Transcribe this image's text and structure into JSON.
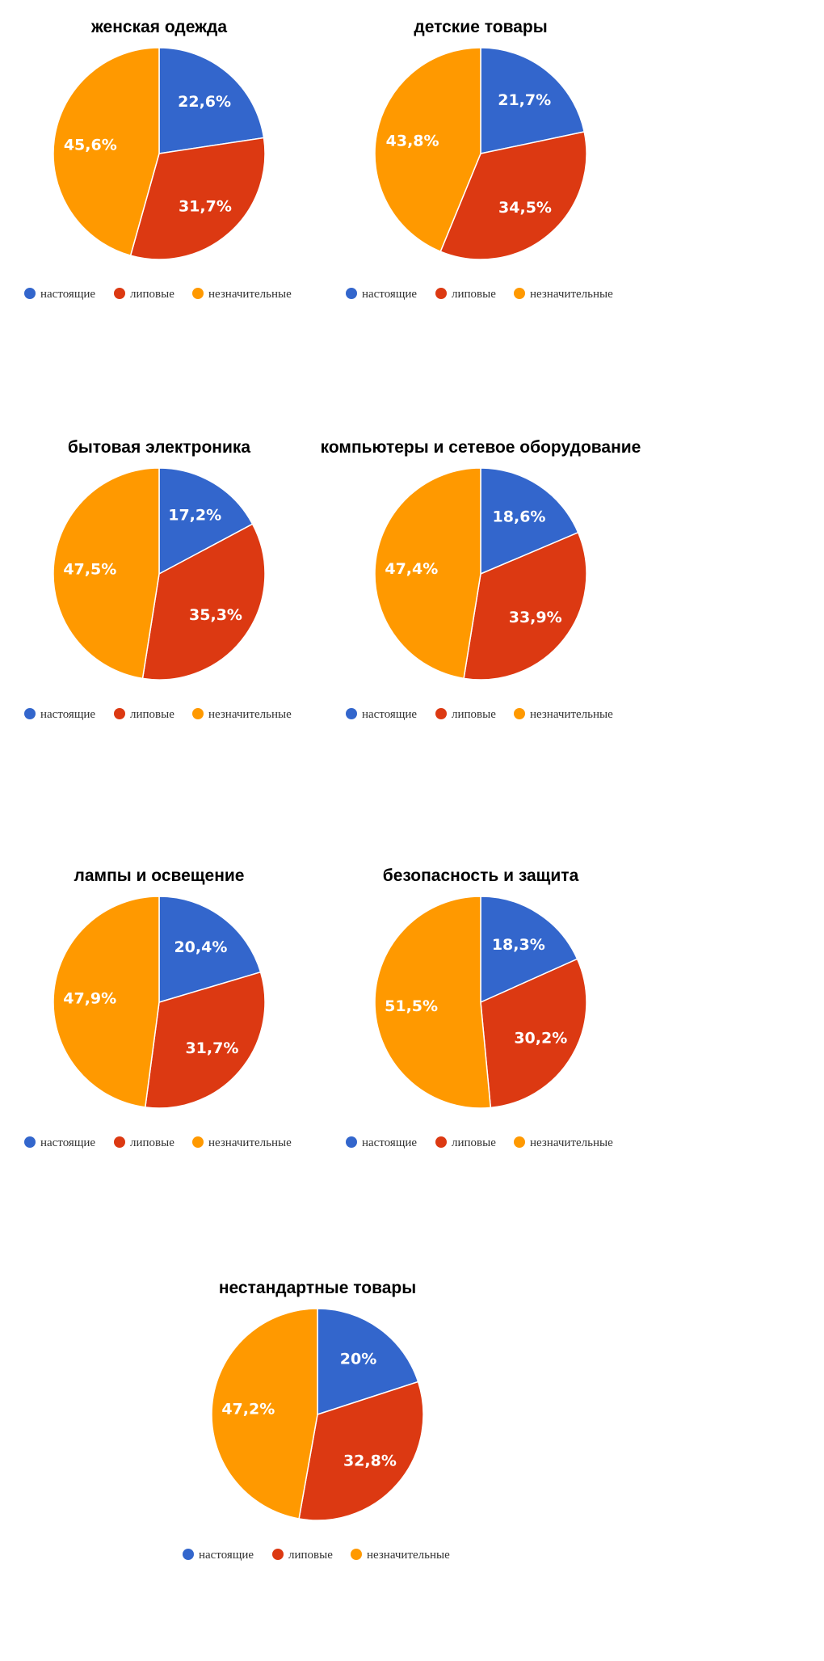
{
  "legend_labels": [
    "настоящие",
    "липовые",
    "незначительные"
  ],
  "series_colors": [
    "#3366cc",
    "#dc3912",
    "#ff9900"
  ],
  "chart_data": [
    {
      "type": "pie",
      "title": "женская одежда",
      "categories": [
        "настоящие",
        "липовые",
        "незначительные"
      ],
      "values": [
        22.6,
        31.7,
        45.6
      ],
      "value_labels": [
        "22,6%",
        "31,7%",
        "45,6%"
      ],
      "legend_position": "bottom"
    },
    {
      "type": "pie",
      "title": "детские товары",
      "categories": [
        "настоящие",
        "липовые",
        "незначительные"
      ],
      "values": [
        21.7,
        34.5,
        43.8
      ],
      "value_labels": [
        "21,7%",
        "34,5%",
        "43,8%"
      ],
      "legend_position": "bottom"
    },
    {
      "type": "pie",
      "title": "бытовая электроника",
      "categories": [
        "настоящие",
        "липовые",
        "незначительные"
      ],
      "values": [
        17.2,
        35.3,
        47.5
      ],
      "value_labels": [
        "17,2%",
        "35,3%",
        "47,5%"
      ],
      "legend_position": "bottom"
    },
    {
      "type": "pie",
      "title": "компьютеры и сетевое оборудование",
      "categories": [
        "настоящие",
        "липовые",
        "незначительные"
      ],
      "values": [
        18.6,
        33.9,
        47.4
      ],
      "value_labels": [
        "18,6%",
        "33,9%",
        "47,4%"
      ],
      "legend_position": "bottom"
    },
    {
      "type": "pie",
      "title": "лампы и освещение",
      "categories": [
        "настоящие",
        "липовые",
        "незначительные"
      ],
      "values": [
        20.4,
        31.7,
        47.9
      ],
      "value_labels": [
        "20,4%",
        "31,7%",
        "47,9%"
      ],
      "legend_position": "bottom"
    },
    {
      "type": "pie",
      "title": "безопасность и защита",
      "categories": [
        "настоящие",
        "липовые",
        "незначительные"
      ],
      "values": [
        18.3,
        30.2,
        51.5
      ],
      "value_labels": [
        "18,3%",
        "30,2%",
        "51,5%"
      ],
      "legend_position": "bottom"
    },
    {
      "type": "pie",
      "title": "нестандартные товары",
      "categories": [
        "настоящие",
        "липовые",
        "незначительные"
      ],
      "values": [
        20,
        32.8,
        47.2
      ],
      "value_labels": [
        "20%",
        "32,8%",
        "47,2%"
      ],
      "legend_position": "bottom"
    }
  ]
}
